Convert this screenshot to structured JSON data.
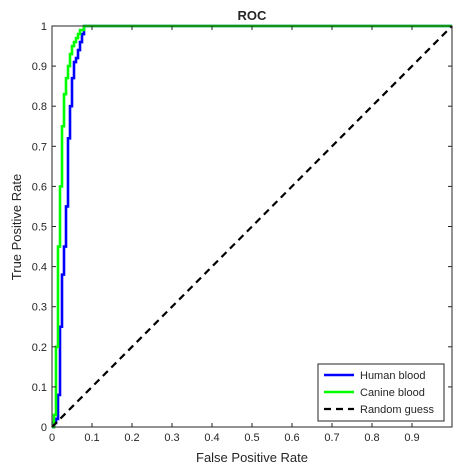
{
  "chart_data": {
    "type": "line",
    "title": "ROC",
    "xlabel": "False Positive Rate",
    "ylabel": "True Positive Rate",
    "xlim": [
      0,
      1
    ],
    "ylim": [
      0,
      1
    ],
    "xticks": [
      "0",
      "0.1",
      "0.2",
      "0.3",
      "0.4",
      "0.5",
      "0.6",
      "0.7",
      "0.8",
      "0.9"
    ],
    "yticks": [
      "0",
      "0.1",
      "0.2",
      "0.3",
      "0.4",
      "0.5",
      "0.6",
      "0.7",
      "0.8",
      "0.9",
      "1"
    ],
    "grid": false,
    "legend_position": "bottom-right",
    "series": [
      {
        "name": "Human blood",
        "color": "#0000ff",
        "style": "solid",
        "x": [
          0,
          0.005,
          0.005,
          0.01,
          0.01,
          0.015,
          0.015,
          0.02,
          0.02,
          0.025,
          0.025,
          0.03,
          0.03,
          0.035,
          0.035,
          0.04,
          0.04,
          0.045,
          0.045,
          0.05,
          0.05,
          0.055,
          0.055,
          0.06,
          0.06,
          0.065,
          0.065,
          0.07,
          0.07,
          0.075,
          0.075,
          0.08,
          0.08,
          0.09,
          1.0
        ],
        "y": [
          0,
          0,
          0.01,
          0.01,
          0.02,
          0.02,
          0.08,
          0.08,
          0.25,
          0.25,
          0.38,
          0.38,
          0.45,
          0.45,
          0.55,
          0.55,
          0.72,
          0.72,
          0.8,
          0.8,
          0.87,
          0.87,
          0.91,
          0.91,
          0.92,
          0.92,
          0.94,
          0.94,
          0.96,
          0.96,
          0.98,
          0.98,
          1.0,
          1.0,
          1.0
        ]
      },
      {
        "name": "Canine blood",
        "color": "#00ff00",
        "style": "solid",
        "x": [
          0,
          0.005,
          0.005,
          0.01,
          0.01,
          0.015,
          0.015,
          0.02,
          0.02,
          0.025,
          0.025,
          0.03,
          0.03,
          0.035,
          0.035,
          0.04,
          0.04,
          0.045,
          0.045,
          0.05,
          0.05,
          0.055,
          0.055,
          0.06,
          0.06,
          0.065,
          0.065,
          0.07,
          0.07,
          0.08,
          0.08,
          1.0
        ],
        "y": [
          0,
          0,
          0.03,
          0.03,
          0.2,
          0.2,
          0.45,
          0.45,
          0.6,
          0.6,
          0.75,
          0.75,
          0.83,
          0.83,
          0.87,
          0.87,
          0.9,
          0.9,
          0.93,
          0.93,
          0.95,
          0.95,
          0.96,
          0.96,
          0.97,
          0.97,
          0.98,
          0.98,
          0.99,
          0.99,
          1.0,
          1.0
        ]
      },
      {
        "name": "Random guess",
        "color": "#000000",
        "style": "dashed",
        "x": [
          0,
          1
        ],
        "y": [
          0,
          1
        ]
      }
    ]
  }
}
